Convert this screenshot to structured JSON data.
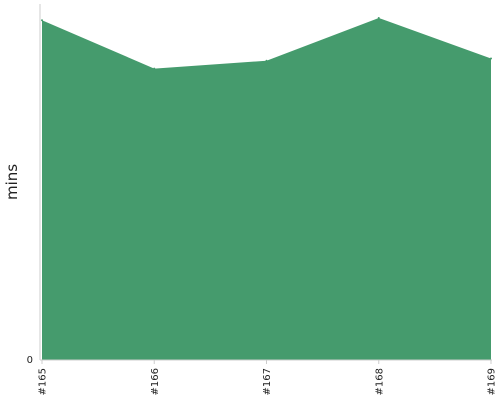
{
  "chart_data": {
    "type": "area",
    "title": "",
    "xlabel": "",
    "ylabel": "mins",
    "categories": [
      "#165",
      "#166",
      "#167",
      "#168",
      "#169"
    ],
    "series": [
      {
        "values": [
          30.2,
          25.9,
          26.6,
          30.4,
          26.8
        ]
      }
    ],
    "ylim": [
      0,
      32
    ],
    "y_ticks": [
      "0"
    ],
    "grid": false,
    "legend": "none",
    "colors": {
      "area_fill": "#459b6d",
      "axis": "#cccccc"
    }
  }
}
